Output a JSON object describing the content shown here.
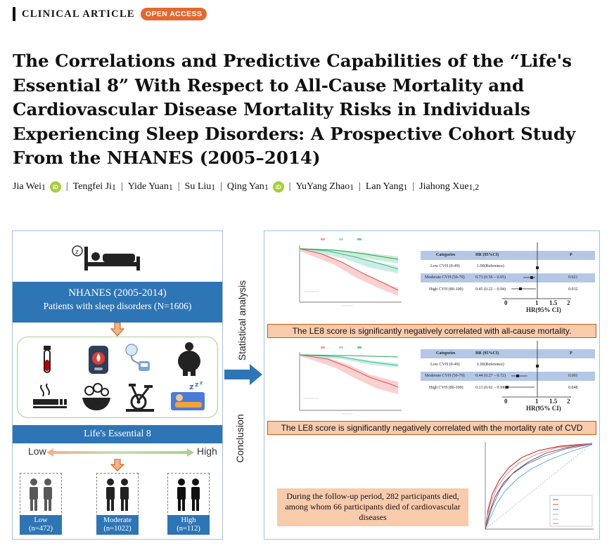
{
  "header": {
    "section_label": "CLINICAL ARTICLE",
    "badge": "OPEN ACCESS"
  },
  "title": "The Correlations and Predictive Capabilities of the “Life's Essential 8” With Respect to All-Cause Mortality and Cardiovascular Disease Mortality Risks in Individuals Experiencing Sleep Disorders: A Prospective Cohort Study From the NHANES (2005–2014)",
  "authors": [
    {
      "name": "Jia Wei",
      "aff": "1",
      "orcid": true
    },
    {
      "name": "Tengfei Ji",
      "aff": "1",
      "orcid": false
    },
    {
      "name": "Yide Yuan",
      "aff": "1",
      "orcid": false
    },
    {
      "name": "Su Liu",
      "aff": "1",
      "orcid": false
    },
    {
      "name": "Qing Yan",
      "aff": "1",
      "orcid": true
    },
    {
      "name": "YuYang Zhao",
      "aff": "1",
      "orcid": false
    },
    {
      "name": "Lan Yang",
      "aff": "1",
      "orcid": false
    },
    {
      "name": "Jiahong Xue",
      "aff": "1,2",
      "orcid": false
    }
  ],
  "orcid_label": "iD",
  "abstract": {
    "nhanes_title": "NHANES (2005-2014)",
    "nhanes_subtitle": "Patients with sleep disorders (N=1606)",
    "le8_label": "Life's Essential 8",
    "low_label": "Low",
    "high_label": "High",
    "groups": [
      {
        "name": "Low",
        "n": "(n=472)"
      },
      {
        "name": "Moderate",
        "n": "(n=1022)"
      },
      {
        "name": "High",
        "n": "(n=112)"
      }
    ],
    "stat_label": "Statistical analysis",
    "conclusion_label": "Conclusion",
    "finding_1": "The LE8 score is significantly negatively correlated with all-cause mortality.",
    "finding_2": "The LE8 score is significantly negatively correlated with the mortality rate of CVD",
    "conclusion_text": "During the follow-up period, 282 participants died, among whom 66 participants died of cardiovascular diseases",
    "forest_header": {
      "categories": "Categories",
      "hr": "HR (95%CI)",
      "p": "P"
    },
    "forest1": [
      {
        "cat": "Low CVH (0-49)",
        "hr": "1.00(Reference)",
        "p": ""
      },
      {
        "cat": "Moderate CVH (50-79)",
        "hr": "0.73 (0.56 – 0.95)",
        "p": "0.021"
      },
      {
        "cat": "High CVH (80-100)",
        "hr": "0.45 (0.22 – 0.94)",
        "p": "0.032"
      }
    ],
    "forest2": [
      {
        "cat": "Low CVH (0-49)",
        "hr": "1.00(Reference)",
        "p": ""
      },
      {
        "cat": "Moderate CVH (50-79)",
        "hr": "0.44 (0.27 – 0.72)",
        "p": "0.001"
      },
      {
        "cat": "High CVH (80-100)",
        "hr": "0.13 (0.02 – 0.91)",
        "p": "0.048"
      }
    ],
    "forest_axis_label": "HR(95% CI)",
    "forest_ticks": [
      "0",
      "1",
      "1.5",
      "2"
    ]
  }
}
